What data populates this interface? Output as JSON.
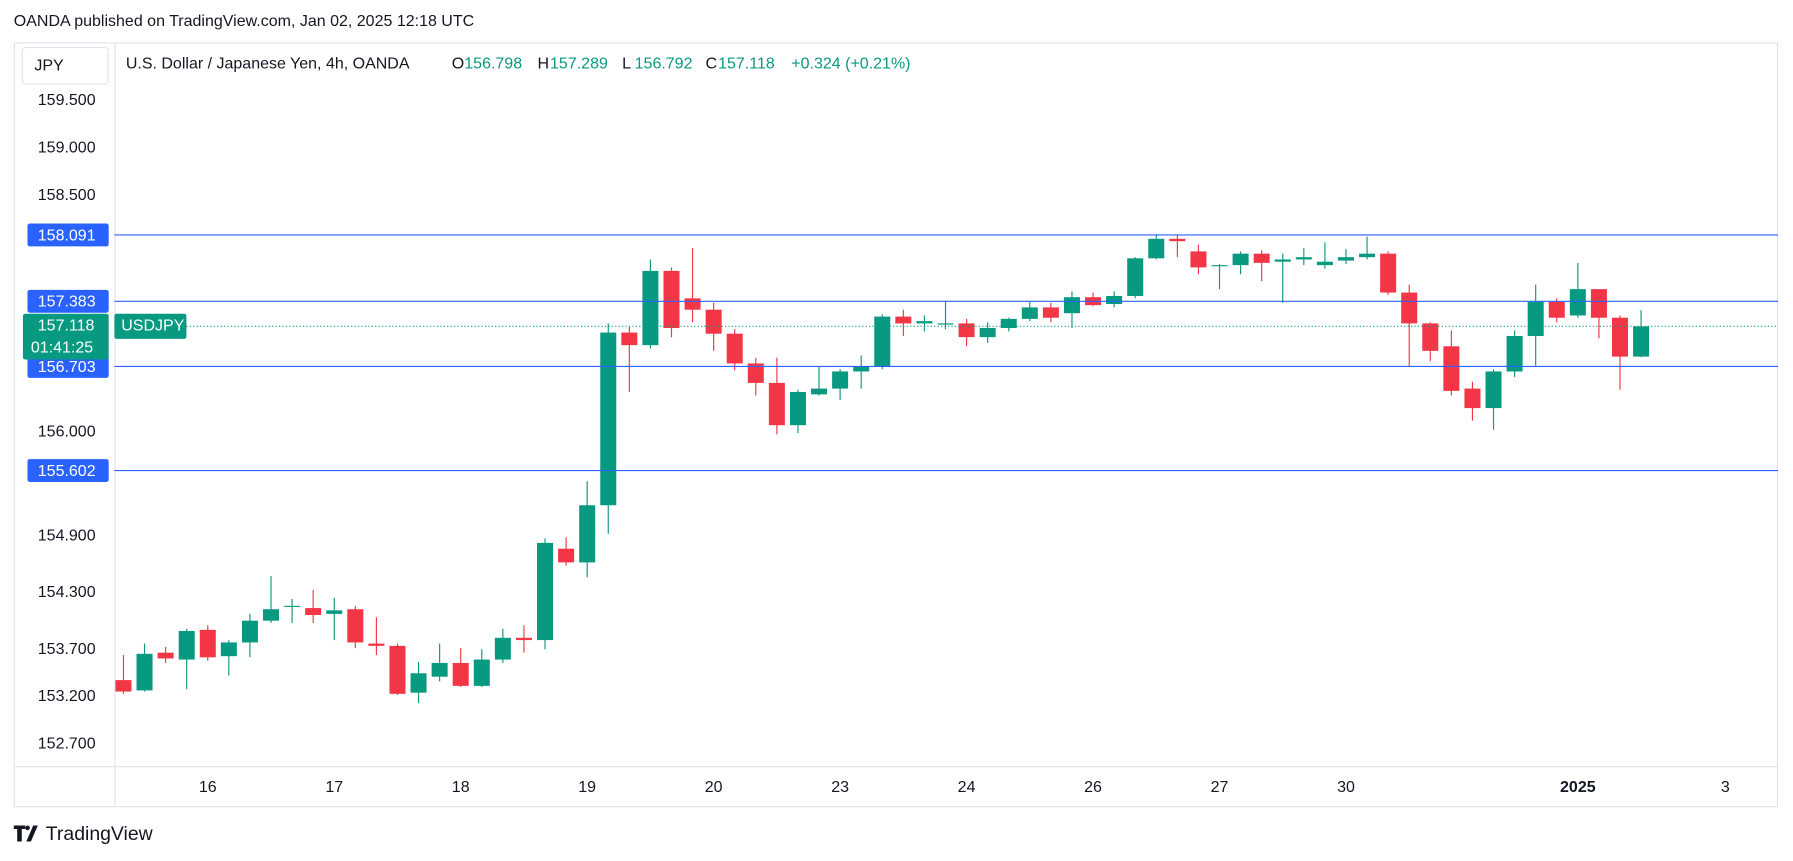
{
  "chart_data": {
    "type": "candlestick",
    "publisher": "OANDA published on TradingView.com, Jan 02, 2025 12:18 UTC",
    "currency": "JPY",
    "title": "U.S. Dollar / Japanese Yen, 4h, OANDA",
    "ohlc_keys": [
      "O",
      "H",
      "L",
      "C"
    ],
    "ohlc_values": [
      156.798,
      157.289,
      156.792,
      157.118
    ],
    "change": "+0.324 (+0.21%)",
    "symbol": "USDJPY",
    "countdown": "01:41:25",
    "last_price": 157.118,
    "footer": "TradingView",
    "up_color": "#089981",
    "down_color": "#f23645",
    "hline_color": "#2962ff",
    "hlines": [
      158.091,
      157.383,
      156.703,
      155.602
    ],
    "ylim": [
      152.47,
      160.12
    ],
    "yticks": [
      {
        "value": 159.5,
        "label": "159.500"
      },
      {
        "value": 159.0,
        "label": "159.000"
      },
      {
        "value": 158.5,
        "label": "158.500"
      },
      {
        "value": 156.0,
        "label": "156.000"
      },
      {
        "value": 154.9,
        "label": "154.900"
      },
      {
        "value": 154.3,
        "label": "154.300"
      },
      {
        "value": 153.7,
        "label": "153.700"
      },
      {
        "value": 153.2,
        "label": "153.200"
      },
      {
        "value": 152.7,
        "label": "152.700"
      }
    ],
    "xlim": [
      -0.43,
      78.5
    ],
    "xticks": [
      {
        "value": 4,
        "label": "16"
      },
      {
        "value": 10,
        "label": "17"
      },
      {
        "value": 16,
        "label": "18"
      },
      {
        "value": 22,
        "label": "19"
      },
      {
        "value": 28,
        "label": "20"
      },
      {
        "value": 34,
        "label": "23"
      },
      {
        "value": 40,
        "label": "24"
      },
      {
        "value": 46,
        "label": "26"
      },
      {
        "value": 52,
        "label": "27"
      },
      {
        "value": 58,
        "label": "30"
      },
      {
        "value": 69,
        "label": "2025"
      },
      {
        "value": 76,
        "label": "3"
      }
    ],
    "open": [
      153.379,
      153.27,
      153.669,
      153.596,
      153.91,
      153.632,
      153.777,
      154.007,
      154.152,
      154.14,
      154.079,
      154.128,
      153.765,
      153.741,
      153.246,
      153.415,
      153.56,
      153.318,
      153.596,
      153.826,
      153.802,
      154.768,
      154.623,
      155.227,
      157.052,
      156.919,
      157.704,
      157.414,
      157.294,
      157.04,
      156.726,
      156.52,
      156.073,
      156.399,
      156.46,
      156.641,
      156.689,
      157.221,
      157.149,
      157.136,
      157.149,
      157.004,
      157.1,
      157.197,
      157.318,
      157.257,
      157.426,
      157.354,
      157.439,
      157.837,
      158.043,
      157.91,
      157.753,
      157.765,
      157.886,
      157.801,
      157.825,
      157.765,
      157.813,
      157.849,
      157.886,
      157.475,
      157.149,
      156.907,
      156.46,
      156.254,
      156.641,
      157.016,
      157.378,
      157.233,
      157.511,
      157.209,
      156.798
    ],
    "high": [
      153.644,
      153.765,
      153.729,
      153.922,
      153.959,
      153.802,
      154.079,
      154.478,
      154.237,
      154.333,
      154.249,
      154.164,
      154.043,
      153.765,
      153.572,
      153.765,
      153.717,
      153.705,
      153.922,
      153.959,
      154.877,
      154.889,
      155.481,
      157.149,
      157.112,
      157.825,
      157.741,
      157.946,
      157.366,
      157.088,
      156.786,
      156.786,
      156.448,
      156.689,
      156.665,
      156.81,
      157.245,
      157.294,
      157.233,
      157.39,
      157.197,
      157.161,
      157.209,
      157.378,
      157.366,
      157.487,
      157.475,
      157.487,
      157.849,
      158.091,
      158.091,
      157.982,
      157.777,
      157.91,
      157.922,
      157.886,
      157.946,
      158.006,
      157.934,
      158.067,
      157.91,
      157.559,
      157.161,
      157.076,
      156.532,
      156.665,
      157.076,
      157.559,
      157.414,
      157.789,
      157.511,
      157.233,
      157.289
    ],
    "low": [
      153.234,
      153.258,
      153.56,
      153.282,
      153.584,
      153.427,
      153.62,
      153.983,
      153.983,
      153.983,
      153.802,
      153.717,
      153.644,
      153.222,
      153.137,
      153.367,
      153.306,
      153.306,
      153.56,
      153.669,
      153.705,
      154.587,
      154.466,
      154.925,
      156.424,
      156.883,
      157.004,
      157.161,
      156.859,
      156.653,
      156.387,
      155.976,
      155.989,
      156.387,
      156.339,
      156.46,
      156.665,
      157.016,
      157.064,
      157.088,
      156.907,
      156.943,
      157.064,
      157.173,
      157.161,
      157.1,
      157.33,
      157.318,
      157.414,
      157.825,
      157.849,
      157.668,
      157.511,
      157.668,
      157.596,
      157.366,
      157.765,
      157.728,
      157.777,
      157.825,
      157.451,
      156.689,
      156.75,
      156.387,
      156.121,
      156.025,
      156.581,
      156.701,
      157.161,
      157.209,
      156.991,
      156.448,
      156.792
    ],
    "close": [
      153.258,
      153.657,
      153.608,
      153.898,
      153.62,
      153.777,
      154.007,
      154.128,
      154.164,
      154.067,
      154.116,
      153.777,
      153.741,
      153.234,
      153.451,
      153.56,
      153.318,
      153.596,
      153.826,
      153.802,
      154.829,
      154.623,
      155.227,
      157.052,
      156.919,
      157.704,
      157.1,
      157.294,
      157.04,
      156.726,
      156.52,
      156.073,
      156.424,
      156.46,
      156.641,
      156.689,
      157.221,
      157.149,
      157.173,
      157.149,
      157.004,
      157.1,
      157.197,
      157.318,
      157.209,
      157.426,
      157.342,
      157.439,
      157.837,
      158.043,
      158.018,
      157.741,
      157.765,
      157.886,
      157.789,
      157.825,
      157.849,
      157.801,
      157.849,
      157.886,
      157.475,
      157.149,
      156.859,
      156.436,
      156.254,
      156.641,
      157.016,
      157.378,
      157.209,
      157.511,
      157.209,
      156.798,
      157.118
    ]
  }
}
